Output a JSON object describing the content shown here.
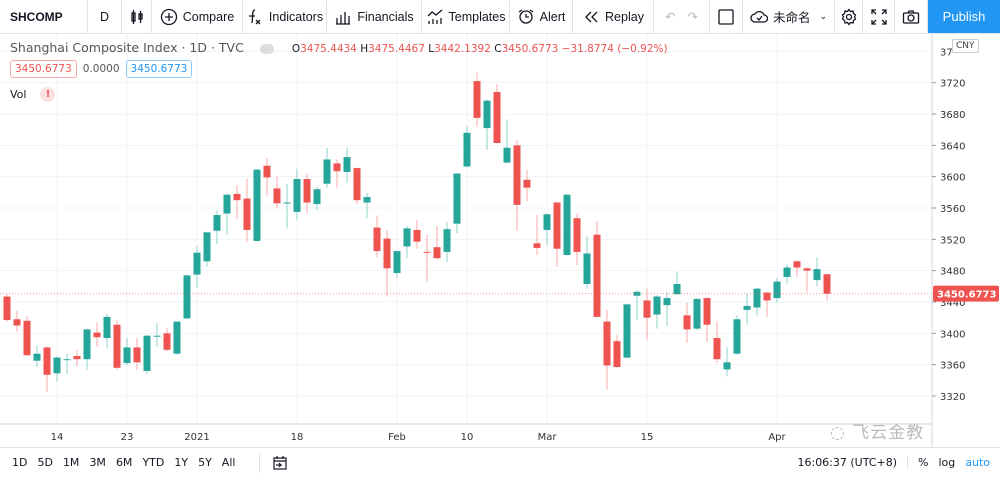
{
  "toolbar": {
    "symbol": "SHCOMP",
    "interval": "D",
    "compare": "Compare",
    "indicators": "Indicators",
    "financials": "Financials",
    "templates": "Templates",
    "alert": "Alert",
    "replay": "Replay",
    "layout_name": "未命名",
    "publish": "Publish"
  },
  "legend": {
    "title": "Shanghai Composite Index · 1D · TVC",
    "o_label": "O",
    "o": "3475.4434",
    "h_label": "H",
    "h": "3475.4467",
    "l_label": "L",
    "l": "3442.1392",
    "c_label": "C",
    "c": "3450.6773",
    "change": "−31.8774 (−0.92%)",
    "val1": "3450.6773",
    "val2": "0.0000",
    "val3": "3450.6773",
    "vol_label": "Vol",
    "vol_warning": "!"
  },
  "currency": "CNY",
  "bottom": {
    "ranges": [
      "1D",
      "5D",
      "1M",
      "3M",
      "6M",
      "YTD",
      "1Y",
      "5Y",
      "All"
    ],
    "time": "16:06:37 (UTC+8)",
    "percent": "%",
    "log": "log",
    "auto": "auto"
  },
  "watermark": "飞云金教",
  "colors": {
    "up": "#26a69a",
    "down": "#ef5350",
    "accent": "#2196f3"
  },
  "chart_data": {
    "type": "candlestick",
    "title": "Shanghai Composite Index · 1D · TVC",
    "y_ticks": [
      3320,
      3360,
      3400,
      3440,
      3480,
      3520,
      3560,
      3600,
      3640,
      3680,
      3720
    ],
    "y_partial_tick": "37",
    "ylim": [
      3320,
      3720
    ],
    "last_price": "3450.6773",
    "x_ticks": [
      {
        "i": 5,
        "label": "14"
      },
      {
        "i": 12,
        "label": "23"
      },
      {
        "i": 19,
        "label": "2021"
      },
      {
        "i": 29,
        "label": "18"
      },
      {
        "i": 39,
        "label": "Feb"
      },
      {
        "i": 46,
        "label": "10"
      },
      {
        "i": 54,
        "label": "Mar"
      },
      {
        "i": 64,
        "label": "15"
      },
      {
        "i": 77,
        "label": "Apr"
      }
    ],
    "ohlc": [
      [
        3447,
        3450,
        3415,
        3417
      ],
      [
        3418,
        3429,
        3402,
        3410
      ],
      [
        3416,
        3422,
        3372,
        3372
      ],
      [
        3365,
        3385,
        3357,
        3374
      ],
      [
        3382,
        3383,
        3325,
        3347
      ],
      [
        3349,
        3371,
        3338,
        3369
      ],
      [
        3367,
        3374,
        3348,
        3367
      ],
      [
        3371,
        3379,
        3358,
        3367
      ],
      [
        3367,
        3406,
        3353,
        3405
      ],
      [
        3401,
        3414,
        3383,
        3395
      ],
      [
        3394,
        3425,
        3381,
        3421
      ],
      [
        3411,
        3416,
        3354,
        3356
      ],
      [
        3362,
        3394,
        3359,
        3382
      ],
      [
        3382,
        3394,
        3353,
        3363
      ],
      [
        3352,
        3398,
        3348,
        3397
      ],
      [
        3396,
        3413,
        3383,
        3397
      ],
      [
        3400,
        3407,
        3377,
        3379
      ],
      [
        3374,
        3415,
        3373,
        3415
      ],
      [
        3419,
        3475,
        3418,
        3474
      ],
      [
        3475,
        3511,
        3458,
        3503
      ],
      [
        3492,
        3530,
        3485,
        3529
      ],
      [
        3531,
        3557,
        3514,
        3551
      ],
      [
        3553,
        3578,
        3526,
        3577
      ],
      [
        3578,
        3589,
        3546,
        3570
      ],
      [
        3572,
        3598,
        3517,
        3532
      ],
      [
        3518,
        3610,
        3517,
        3609
      ],
      [
        3614,
        3624,
        3576,
        3599
      ],
      [
        3585,
        3600,
        3560,
        3566
      ],
      [
        3566,
        3591,
        3534,
        3567
      ],
      [
        3555,
        3610,
        3545,
        3597
      ],
      [
        3597,
        3604,
        3553,
        3567
      ],
      [
        3565,
        3587,
        3557,
        3584
      ],
      [
        3591,
        3637,
        3586,
        3622
      ],
      [
        3617,
        3622,
        3586,
        3607
      ],
      [
        3606,
        3637,
        3592,
        3625
      ],
      [
        3611,
        3612,
        3565,
        3570
      ],
      [
        3567,
        3579,
        3547,
        3574
      ],
      [
        3535,
        3550,
        3497,
        3505
      ],
      [
        3521,
        3532,
        3447,
        3483
      ],
      [
        3477,
        3506,
        3471,
        3505
      ],
      [
        3511,
        3537,
        3496,
        3534
      ],
      [
        3532,
        3545,
        3508,
        3517
      ],
      [
        3504,
        3526,
        3466,
        3503
      ],
      [
        3510,
        3537,
        3494,
        3496
      ],
      [
        3504,
        3542,
        3491,
        3533
      ],
      [
        3540,
        3605,
        3528,
        3604
      ],
      [
        3613,
        3664,
        3612,
        3656
      ],
      [
        3722,
        3733,
        3664,
        3675
      ],
      [
        3662,
        3699,
        3634,
        3697
      ],
      [
        3708,
        3718,
        3642,
        3643
      ],
      [
        3618,
        3673,
        3617,
        3637
      ],
      [
        3640,
        3647,
        3531,
        3564
      ],
      [
        3596,
        3609,
        3569,
        3586
      ],
      [
        3515,
        3551,
        3500,
        3509
      ],
      [
        3532,
        3553,
        3513,
        3552
      ],
      [
        3567,
        3568,
        3485,
        3508
      ],
      [
        3500,
        3578,
        3499,
        3577
      ],
      [
        3547,
        3553,
        3487,
        3504
      ],
      [
        3463,
        3524,
        3457,
        3502
      ],
      [
        3526,
        3543,
        3420,
        3421
      ],
      [
        3415,
        3430,
        3328,
        3359
      ],
      [
        3390,
        3398,
        3356,
        3357
      ],
      [
        3369,
        3438,
        3368,
        3437
      ],
      [
        3448,
        3455,
        3417,
        3453
      ],
      [
        3442,
        3457,
        3392,
        3420
      ],
      [
        3424,
        3449,
        3406,
        3447
      ],
      [
        3436,
        3453,
        3409,
        3445
      ],
      [
        3450,
        3479,
        3449,
        3463
      ],
      [
        3423,
        3439,
        3388,
        3405
      ],
      [
        3406,
        3445,
        3404,
        3444
      ],
      [
        3445,
        3446,
        3389,
        3411
      ],
      [
        3394,
        3415,
        3362,
        3367
      ],
      [
        3354,
        3382,
        3345,
        3363
      ],
      [
        3374,
        3423,
        3373,
        3418
      ],
      [
        3430,
        3450,
        3411,
        3435
      ],
      [
        3433,
        3458,
        3423,
        3457
      ],
      [
        3452,
        3453,
        3421,
        3442
      ],
      [
        3445,
        3471,
        3439,
        3466
      ],
      [
        3472,
        3488,
        3464,
        3484
      ],
      [
        3492,
        3493,
        3472,
        3484
      ],
      [
        3483,
        3484,
        3453,
        3480
      ],
      [
        3468,
        3497,
        3460,
        3482
      ],
      [
        3475.4434,
        3475.4467,
        3442.1392,
        3450.6773
      ]
    ]
  }
}
